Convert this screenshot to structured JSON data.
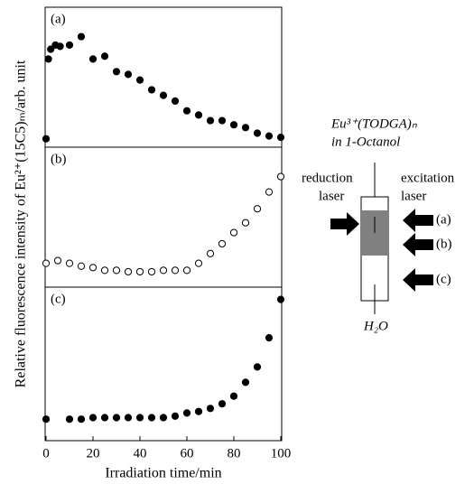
{
  "chart_data": [
    {
      "type": "scatter",
      "label": "(a)",
      "marker": "filled",
      "color": "#000000",
      "x": [
        0,
        1,
        2,
        4,
        6,
        10,
        15,
        20,
        25,
        30,
        35,
        40,
        45,
        50,
        55,
        60,
        65,
        70,
        75,
        80,
        85,
        90,
        95,
        100
      ],
      "values": [
        6,
        63,
        70,
        73,
        72,
        73,
        79,
        63,
        65,
        54,
        52,
        48,
        41,
        37,
        33,
        26,
        23,
        19,
        19,
        16,
        14,
        10,
        8,
        7
      ],
      "xlim": [
        0,
        100
      ],
      "ylim": [
        0,
        100
      ]
    },
    {
      "type": "scatter",
      "label": "(b)",
      "marker": "open",
      "color": "#000000",
      "ylabel": "Relative fluorescence intensity of Eu²⁺(15C5)ₘ/arb. unit",
      "x": [
        0,
        5,
        10,
        15,
        20,
        25,
        30,
        35,
        40,
        45,
        50,
        55,
        60,
        65,
        70,
        75,
        80,
        85,
        90,
        95,
        100
      ],
      "values": [
        17,
        19,
        17,
        15,
        14,
        12,
        12,
        11,
        11,
        11,
        12,
        12,
        12,
        17,
        24,
        31,
        39,
        46,
        56,
        68,
        79
      ],
      "xlim": [
        0,
        100
      ],
      "ylim": [
        0,
        100
      ]
    },
    {
      "type": "scatter",
      "label": "(c)",
      "marker": "filled",
      "color": "#000000",
      "xlabel": "Irradiation time/min",
      "x": [
        0,
        10,
        15,
        20,
        25,
        30,
        35,
        40,
        45,
        50,
        55,
        60,
        65,
        70,
        75,
        80,
        85,
        90,
        95,
        100
      ],
      "values": [
        14,
        14,
        14,
        15,
        15,
        15,
        15,
        15,
        15,
        15,
        16,
        18,
        19,
        21,
        24,
        29,
        38,
        48,
        67,
        92
      ],
      "xlim": [
        0,
        100
      ],
      "ylim": [
        0,
        100
      ],
      "xticks": [
        0,
        20,
        40,
        60,
        80,
        100
      ]
    }
  ],
  "diagram": {
    "complex": "Eu³⁺(TODGA)ₙ",
    "solvent": "in 1-Octanol",
    "reduction": [
      "reduction",
      "laser"
    ],
    "excitation": [
      "excitation",
      "laser"
    ],
    "positions": [
      "(a)",
      "(b)",
      "(c)"
    ],
    "water": "H₂O"
  }
}
